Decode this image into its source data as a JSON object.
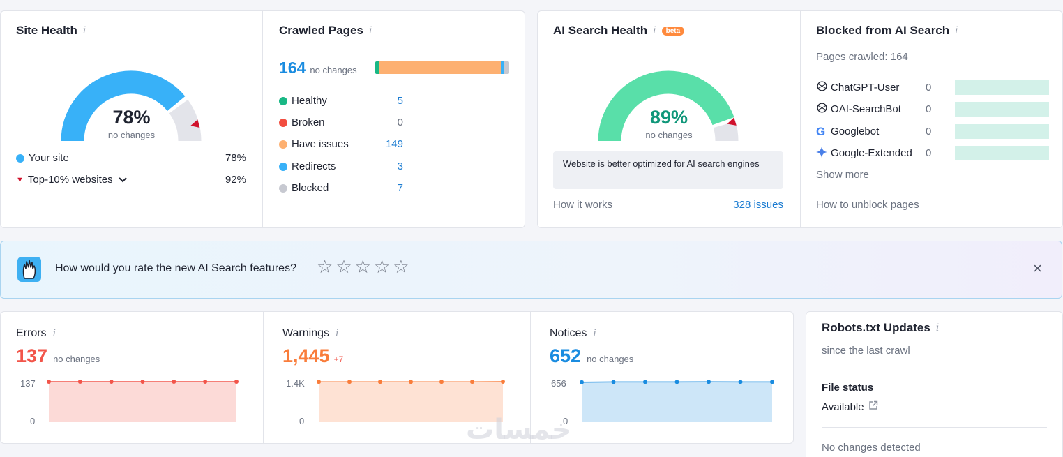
{
  "site_health": {
    "title": "Site Health",
    "info": "i",
    "value": "78%",
    "change": "no changes",
    "gauge_fraction": 0.78,
    "top_marker_fraction": 0.92,
    "legend": [
      {
        "label": "Your site",
        "value": "78%"
      },
      {
        "label": "Top-10% websites",
        "value": "92%"
      }
    ],
    "colors": {
      "fill": "#38b1f8",
      "rest": "#e3e4ea",
      "marker": "#d0122c"
    }
  },
  "crawled_pages": {
    "title": "Crawled Pages",
    "info": "i",
    "total": "164",
    "change": "no changes",
    "items": [
      {
        "label": "Healthy",
        "value": "5",
        "color": "#19b885"
      },
      {
        "label": "Broken",
        "value": "0",
        "color": "#f24d3f"
      },
      {
        "label": "Have issues",
        "value": "149",
        "color": "#fdb071"
      },
      {
        "label": "Redirects",
        "value": "3",
        "color": "#38b1f8"
      },
      {
        "label": "Blocked",
        "value": "7",
        "color": "#c7c9d1"
      }
    ]
  },
  "ai_search_health": {
    "title": "AI Search Health",
    "info": "i",
    "badge": "beta",
    "value": "89%",
    "change": "no changes",
    "gauge_fraction": 0.89,
    "note": "Website is better optimized for AI search engines",
    "how_link": "How it works",
    "issues_link": "328 issues",
    "colors": {
      "fill": "#59dfa9",
      "value": "#10977a",
      "rest": "#e3e4ea",
      "marker": "#d0122c"
    }
  },
  "blocked_ai": {
    "title": "Blocked from AI Search",
    "info": "i",
    "pages_crawled": "Pages crawled: 164",
    "bots": [
      {
        "name": "ChatGPT-User",
        "value": "0",
        "icon": "openai-icon"
      },
      {
        "name": "OAI-SearchBot",
        "value": "0",
        "icon": "openai-icon"
      },
      {
        "name": "Googlebot",
        "value": "0",
        "icon": "google-icon"
      },
      {
        "name": "Google-Extended",
        "value": "0",
        "icon": "gemini-icon"
      }
    ],
    "show_more": "Show more",
    "unblock_link": "How to unblock pages"
  },
  "feedback": {
    "question": "How would you rate the new AI Search features?",
    "stars": [
      "☆",
      "☆",
      "☆",
      "☆",
      "☆"
    ],
    "close": "×"
  },
  "errors": {
    "title": "Errors",
    "info": "i",
    "value": "137",
    "change": "no changes",
    "y_top": "137",
    "y_bottom": "0",
    "color": "#f2554a",
    "chart_data": {
      "type": "area",
      "values": [
        137,
        137,
        137,
        137,
        137,
        137,
        137
      ],
      "ylim": [
        0,
        137
      ]
    }
  },
  "warnings": {
    "title": "Warnings",
    "info": "i",
    "value": "1,445",
    "change": "+7",
    "y_top": "1.4K",
    "y_bottom": "0",
    "color": "#f97d3b",
    "chart_data": {
      "type": "area",
      "values": [
        1438,
        1438,
        1438,
        1438,
        1438,
        1438,
        1445
      ],
      "ylim": [
        0,
        1445
      ]
    }
  },
  "notices": {
    "title": "Notices",
    "info": "i",
    "value": "652",
    "change": "no changes",
    "y_top": "656",
    "y_bottom": "0",
    "color": "#1a8ce0",
    "chart_data": {
      "type": "area",
      "values": [
        648,
        652,
        652,
        652,
        653,
        652,
        652
      ],
      "ylim": [
        0,
        656
      ]
    }
  },
  "robots": {
    "title": "Robots.txt Updates",
    "info": "i",
    "subtitle": "since the last crawl",
    "file_status_label": "File status",
    "file_status_value": "Available",
    "no_changes": "No changes detected"
  },
  "watermark": "خمسات"
}
